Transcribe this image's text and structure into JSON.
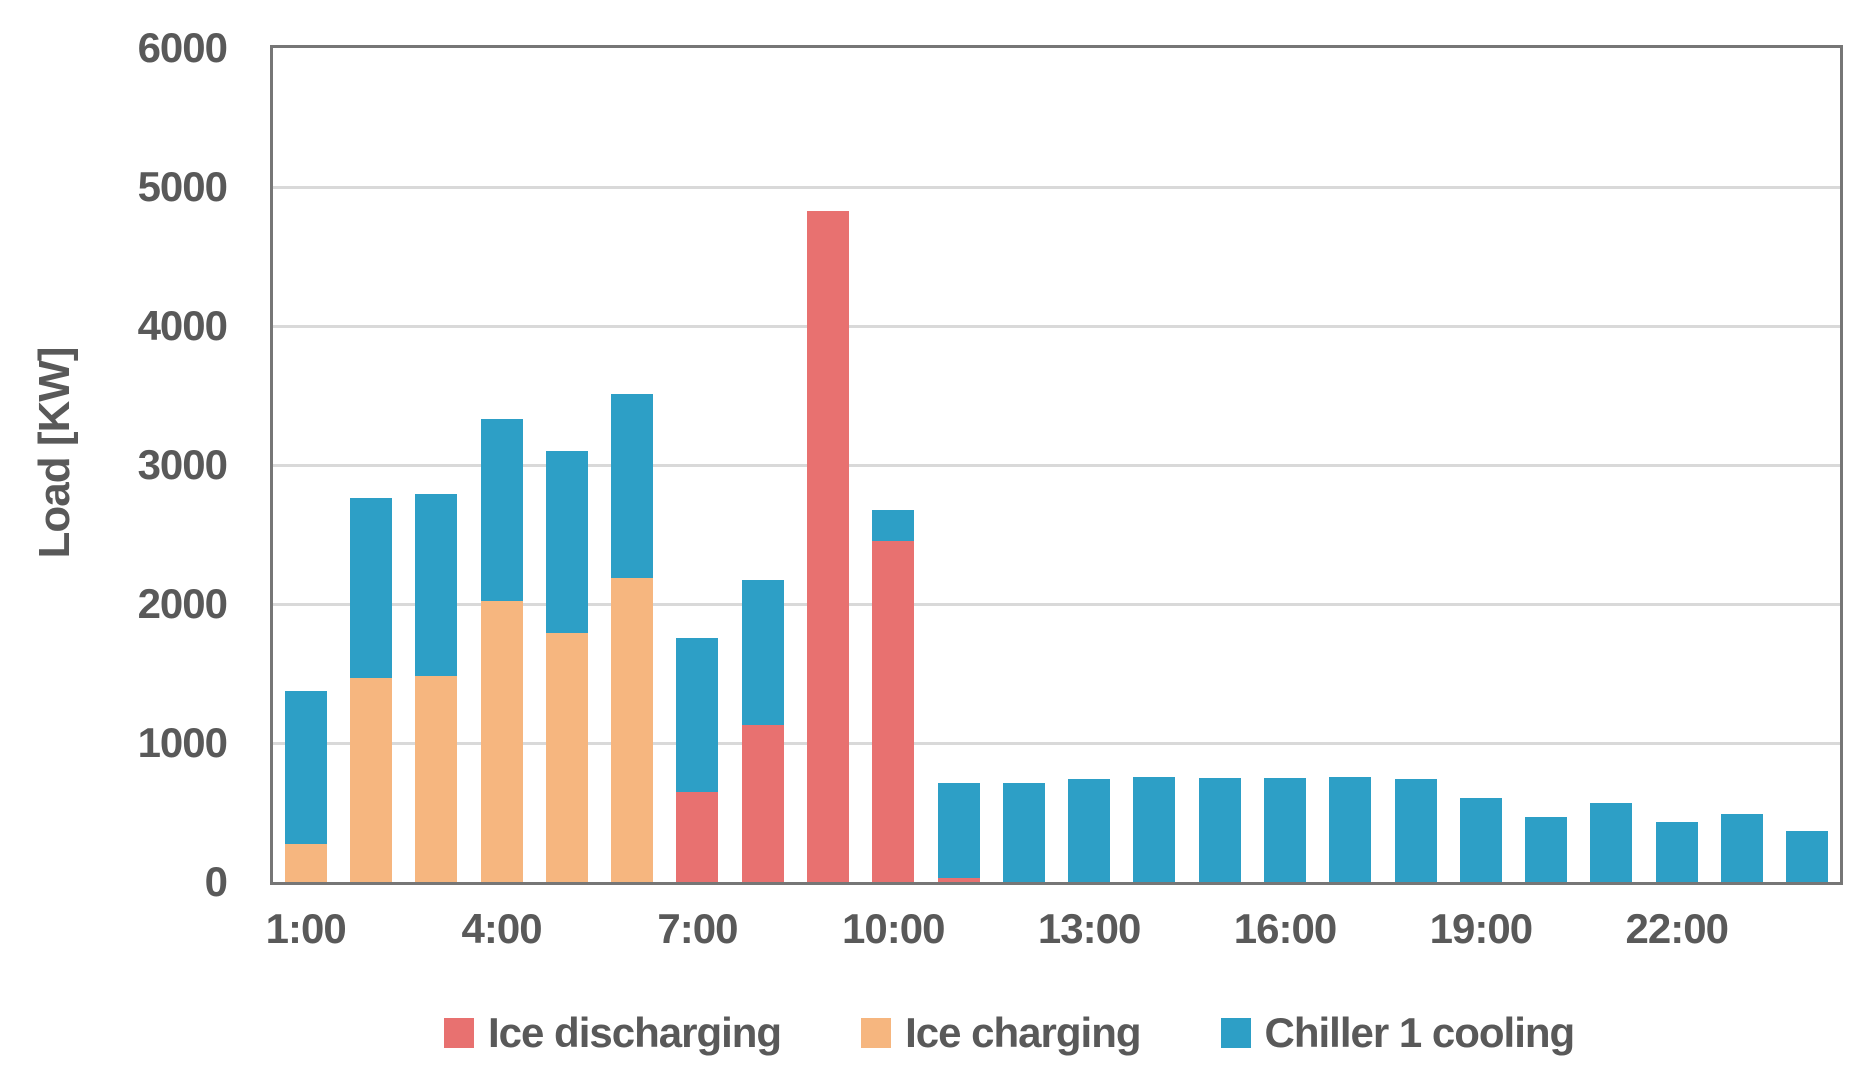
{
  "chart_data": {
    "type": "bar",
    "stacked": true,
    "title": "",
    "xlabel": "",
    "ylabel": "Load [KW]",
    "ylim": [
      0,
      6000
    ],
    "ytick_step": 1000,
    "yticks": [
      0,
      1000,
      2000,
      3000,
      4000,
      5000,
      6000
    ],
    "grid": true,
    "legend_position": "bottom",
    "categories": [
      "1:00",
      "2:00",
      "3:00",
      "4:00",
      "5:00",
      "6:00",
      "7:00",
      "8:00",
      "9:00",
      "10:00",
      "11:00",
      "12:00",
      "13:00",
      "14:00",
      "15:00",
      "16:00",
      "17:00",
      "18:00",
      "19:00",
      "20:00",
      "21:00",
      "22:00",
      "23:00",
      "24:00"
    ],
    "xtick_labels": [
      {
        "index": 0,
        "label": "1:00"
      },
      {
        "index": 3,
        "label": "4:00"
      },
      {
        "index": 6,
        "label": "7:00"
      },
      {
        "index": 9,
        "label": "10:00"
      },
      {
        "index": 12,
        "label": "13:00"
      },
      {
        "index": 15,
        "label": "16:00"
      },
      {
        "index": 18,
        "label": "19:00"
      },
      {
        "index": 21,
        "label": "22:00"
      }
    ],
    "series": [
      {
        "name": "Ice discharging",
        "color": "#e87170",
        "values": [
          0,
          0,
          0,
          0,
          0,
          0,
          645,
          1130,
          4830,
          2455,
          30,
          0,
          0,
          0,
          0,
          0,
          0,
          0,
          0,
          0,
          0,
          0,
          0,
          0
        ]
      },
      {
        "name": "Ice charging",
        "color": "#f6b67f",
        "values": [
          275,
          1470,
          1480,
          2020,
          1790,
          2185,
          0,
          0,
          0,
          0,
          0,
          0,
          0,
          0,
          0,
          0,
          0,
          0,
          0,
          0,
          0,
          0,
          0,
          0
        ]
      },
      {
        "name": "Chiller 1 cooling",
        "color": "#2d9fc6",
        "values": [
          1100,
          1290,
          1310,
          1310,
          1310,
          1325,
          1110,
          1045,
          0,
          220,
          680,
          710,
          740,
          755,
          750,
          750,
          755,
          740,
          605,
          465,
          570,
          430,
          490,
          370
        ]
      }
    ]
  },
  "colors": {
    "axis_border": "#767676",
    "gridline": "#d9d9d9",
    "tick_text": "#595959",
    "background": "#ffffff"
  }
}
